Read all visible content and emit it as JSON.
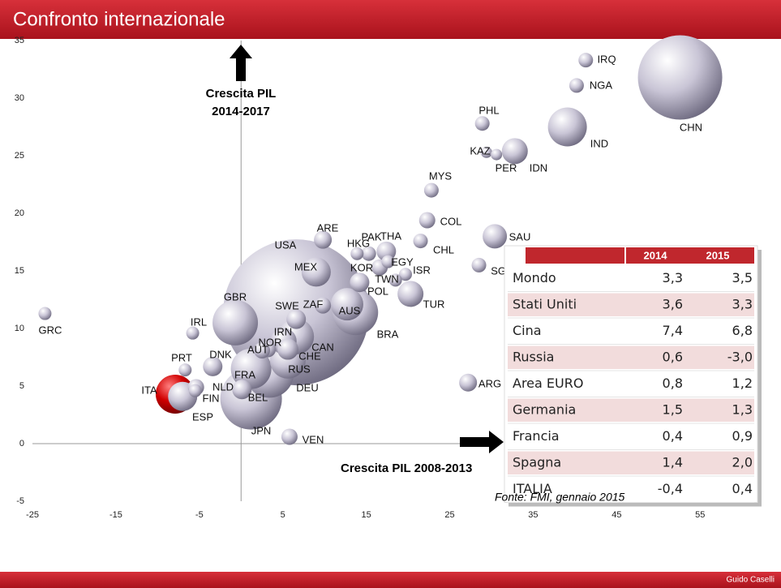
{
  "title": "Confronto internazionale",
  "footer": "Guido Caselli",
  "chart_data": {
    "type": "bubble",
    "y_label": [
      "Crescita PIL",
      "2014-2017"
    ],
    "x_label": "Crescita PIL 2008-2013",
    "source": "Fonte: FMI, gennaio 2015",
    "labels": [
      "USA",
      "CHN",
      "JPN",
      "DEU",
      "BRA",
      "GBR",
      "FRA",
      "IND",
      "ITA",
      "RUS",
      "CAN",
      "AUS",
      "ESP",
      "MEX",
      "IDN",
      "TUR",
      "IRN",
      "SAU",
      "CHE",
      "POL",
      "SWE",
      "THA",
      "BEL",
      "DNK",
      "ARE",
      "ARG",
      "KOR",
      "ZAF",
      "COL",
      "NOR",
      "AUT",
      "NLD",
      "VEN",
      "PAK",
      "IRQ",
      "NGA",
      "PHL",
      "MYS",
      "CHL",
      "SGP",
      "EGY",
      "HKG",
      "ISR",
      "TWN",
      "FIN",
      "PRT",
      "IRL",
      "GRC",
      "KAZ",
      "PER"
    ],
    "x": [
      6.6,
      52.6,
      1.2,
      3.4,
      13.7,
      -0.7,
      1.2,
      39.1,
      -7.9,
      5.6,
      6.6,
      12.7,
      -7,
      9.0,
      32.8,
      20.3,
      5.1,
      30.4,
      5.6,
      14.2,
      6.6,
      17.4,
      0.1,
      -3.4,
      9.8,
      27.2,
      16.6,
      9.8,
      22.3,
      3.2,
      2.5,
      -5.4,
      5.8,
      15.3,
      41.3,
      40.2,
      28.9,
      22.8,
      21.5,
      28.5,
      17.6,
      13.9,
      19.7,
      18.5,
      -5.5,
      -6.7,
      -5.8,
      -23.5,
      29.4,
      30.6
    ],
    "y": [
      11.4,
      31.8,
      3.9,
      6.1,
      11.4,
      10.5,
      6.5,
      27.5,
      4.3,
      7.2,
      9.3,
      12.1,
      4.1,
      14.9,
      25.4,
      13.0,
      8.9,
      18.0,
      8.2,
      14.0,
      10.8,
      16.7,
      4.7,
      6.7,
      17.7,
      5.3,
      15.3,
      12.0,
      19.4,
      8.2,
      8.1,
      4.9,
      0.6,
      16.5,
      33.3,
      31.1,
      27.8,
      22.0,
      17.6,
      15.5,
      15.8,
      16.5,
      14.7,
      14.2,
      4.6,
      6.4,
      9.6,
      11.3,
      25.3,
      25.1
    ],
    "sizes": [
      90,
      52,
      38,
      30,
      28,
      28,
      25,
      24,
      24,
      22,
      22,
      20,
      18,
      18,
      16,
      16,
      16,
      15,
      13,
      12,
      12,
      12,
      12,
      12,
      11,
      11,
      10,
      10,
      10,
      10,
      10,
      10,
      10,
      9,
      9,
      9,
      9,
      9,
      9,
      9,
      8,
      8,
      8,
      8,
      8,
      8,
      8,
      8,
      7,
      7
    ],
    "color": "#bcb8cc",
    "highlight": "ITA",
    "highlight_color": "#cc0000",
    "xlim": [
      -25,
      64.5
    ],
    "ylim": [
      -5,
      35
    ],
    "xticks": [
      -25,
      -15,
      -5,
      5,
      15,
      25,
      35,
      45,
      55
    ],
    "yticks": [
      -5,
      0,
      5,
      10,
      15,
      20,
      25,
      30,
      35
    ]
  },
  "table": {
    "header": [
      "2014",
      "2015"
    ],
    "rows": [
      [
        "Mondo",
        "3,3",
        "3,5"
      ],
      [
        "Stati Uniti",
        "3,6",
        "3,3"
      ],
      [
        "Cina",
        "7,4",
        "6,8"
      ],
      [
        "Russia",
        "0,6",
        "-3,0"
      ],
      [
        "Area EURO",
        "0,8",
        "1,2"
      ],
      [
        "Germania",
        "1,5",
        "1,3"
      ],
      [
        "Francia",
        "0,4",
        "0,9"
      ],
      [
        "Spagna",
        "1,4",
        "2,0"
      ],
      [
        "ITALIA",
        "-0,4",
        "0,4"
      ]
    ]
  }
}
